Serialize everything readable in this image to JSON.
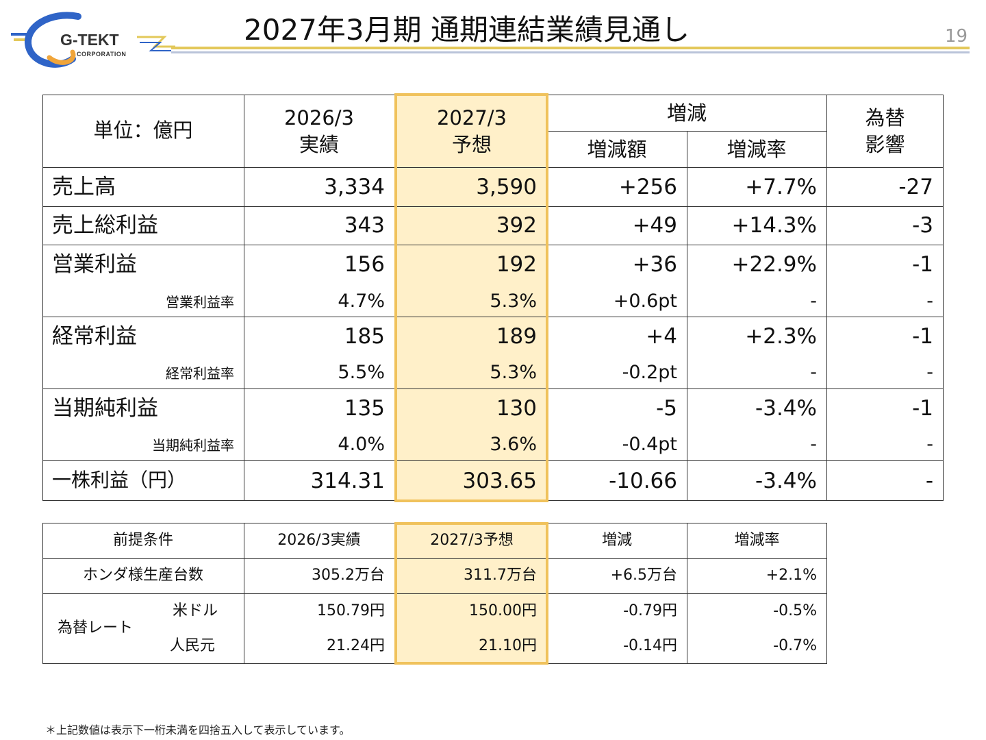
{
  "header": {
    "title": "2027年3月期 通期連結業績見通し",
    "page_number": "19",
    "logo": {
      "name": "G-TEKT",
      "sub": "CORPORATION"
    }
  },
  "colors": {
    "highlight_fill": "#fff0c9",
    "highlight_border": "#f0c25c",
    "rule_gold": "#e3c85a",
    "rule_blue": "#b9c3d9",
    "logo_blue": "#2f64c7",
    "logo_orange": "#f0a53a"
  },
  "main_table": {
    "unit_label": "単位：億円",
    "col_prev_year": "2026/3",
    "col_prev_sub": "実績",
    "col_forecast_year": "2027/3",
    "col_forecast_sub": "予想",
    "col_change": "増減",
    "col_change_amount": "増減額",
    "col_change_rate": "増減率",
    "col_fx_line1": "為替",
    "col_fx_line2": "影響",
    "rows": [
      {
        "label": "売上高",
        "prev": "3,334",
        "forecast": "3,590",
        "amount": "+256",
        "rate": "+7.7%",
        "fx": "-27"
      },
      {
        "label": "売上総利益",
        "prev": "343",
        "forecast": "392",
        "amount": "+49",
        "rate": "+14.3%",
        "fx": "-3"
      },
      {
        "label": "営業利益",
        "prev": "156",
        "forecast": "192",
        "amount": "+36",
        "rate": "+22.9%",
        "fx": "-1",
        "sub": {
          "label": "営業利益率",
          "prev": "4.7%",
          "forecast": "5.3%",
          "amount": "+0.6pt",
          "rate": "-",
          "fx": "-"
        }
      },
      {
        "label": "経常利益",
        "prev": "185",
        "forecast": "189",
        "amount": "+4",
        "rate": "+2.3%",
        "fx": "-1",
        "sub": {
          "label": "経常利益率",
          "prev": "5.5%",
          "forecast": "5.3%",
          "amount": "-0.2pt",
          "rate": "-",
          "fx": "-"
        }
      },
      {
        "label": "当期純利益",
        "prev": "135",
        "forecast": "130",
        "amount": "-5",
        "rate": "-3.4%",
        "fx": "-1",
        "sub": {
          "label": "当期純利益率",
          "prev": "4.0%",
          "forecast": "3.6%",
          "amount": "-0.4pt",
          "rate": "-",
          "fx": "-"
        }
      },
      {
        "label": "一株利益（円）",
        "prev": "314.31",
        "forecast": "303.65",
        "amount": "-10.66",
        "rate": "-3.4%",
        "fx": "-"
      }
    ]
  },
  "conditions_table": {
    "headers": [
      "前提条件",
      "2026/3実績",
      "2027/3予想",
      "増減",
      "増減率"
    ],
    "honda": {
      "label": "ホンダ様生産台数",
      "prev": "305.2万台",
      "forecast": "311.7万台",
      "amount": "+6.5万台",
      "rate": "+2.1%"
    },
    "fx_label": "為替レート",
    "usd": {
      "label": "米ドル",
      "prev": "150.79円",
      "forecast": "150.00円",
      "amount": "-0.79円",
      "rate": "-0.5%"
    },
    "cny": {
      "label": "人民元",
      "prev": "21.24円",
      "forecast": "21.10円",
      "amount": "-0.14円",
      "rate": "-0.7%"
    }
  },
  "footnote": "＊上記数値は表示下一桁未満を四捨五入して表示しています。"
}
